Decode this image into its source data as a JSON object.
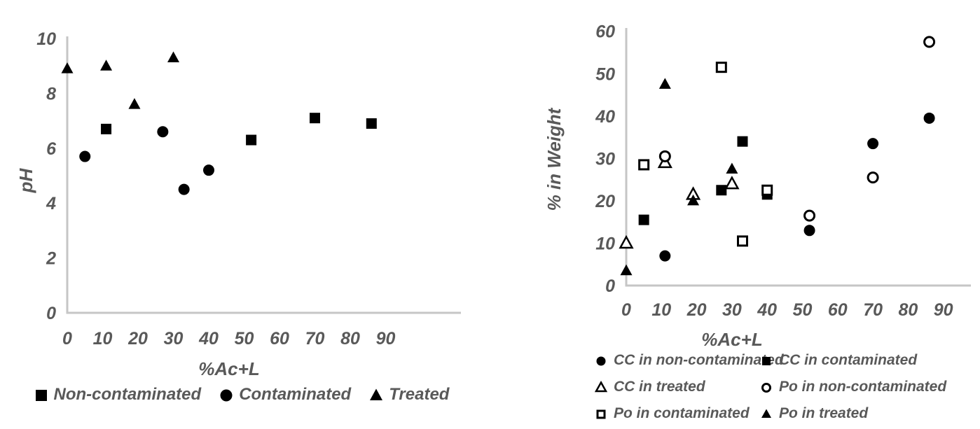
{
  "figure": {
    "background": "#ffffff",
    "text_color": "#595959",
    "axis_line_color": "#c6c6c6",
    "marker_color": "#000000"
  },
  "chart_data": [
    {
      "type": "scatter",
      "title": "",
      "xlabel": "%Ac+L",
      "ylabel": "pH",
      "xlim": [
        0,
        90
      ],
      "ylim": [
        0,
        10
      ],
      "xticks": [
        0,
        10,
        20,
        30,
        40,
        50,
        60,
        70,
        80,
        90
      ],
      "yticks": [
        0,
        2,
        4,
        6,
        8,
        10
      ],
      "grid": false,
      "legend_position": "bottom-center-single-row",
      "series": [
        {
          "name": "Non-contaminated",
          "marker": "filled-square",
          "points": [
            [
              11,
              6.7
            ],
            [
              52,
              6.3
            ],
            [
              70,
              7.1
            ],
            [
              86,
              6.9
            ]
          ]
        },
        {
          "name": "Contaminated",
          "marker": "filled-circle",
          "points": [
            [
              5,
              5.7
            ],
            [
              27,
              6.6
            ],
            [
              33,
              4.5
            ],
            [
              40,
              5.2
            ]
          ]
        },
        {
          "name": "Treated",
          "marker": "filled-triangle",
          "points": [
            [
              0,
              8.9
            ],
            [
              11,
              9.0
            ],
            [
              19,
              7.6
            ],
            [
              30,
              9.3
            ]
          ]
        }
      ]
    },
    {
      "type": "scatter",
      "title": "",
      "xlabel": "%Ac+L",
      "ylabel": "% in Weight",
      "xlim": [
        0,
        90
      ],
      "ylim": [
        0,
        60
      ],
      "xticks": [
        0,
        10,
        20,
        30,
        40,
        50,
        60,
        70,
        80,
        90
      ],
      "yticks": [
        0,
        10,
        20,
        30,
        40,
        50,
        60
      ],
      "grid": false,
      "legend_position": "bottom-two-columns",
      "series": [
        {
          "name": "CC in non-contaminated",
          "marker": "filled-circle",
          "points": [
            [
              11,
              7
            ],
            [
              52,
              13
            ],
            [
              70,
              33.5
            ],
            [
              86,
              39.5
            ]
          ]
        },
        {
          "name": "CC in contaminated",
          "marker": "filled-square",
          "points": [
            [
              5,
              15.5
            ],
            [
              27,
              22.5
            ],
            [
              33,
              34
            ],
            [
              40,
              21.5
            ]
          ]
        },
        {
          "name": "CC in treated",
          "marker": "open-triangle",
          "points": [
            [
              0,
              10
            ],
            [
              11,
              29
            ],
            [
              19,
              21.5
            ],
            [
              30,
              24
            ]
          ]
        },
        {
          "name": "Po in non-contaminated",
          "marker": "open-circle",
          "points": [
            [
              11,
              30.5
            ],
            [
              52,
              16.5
            ],
            [
              70,
              25.5
            ],
            [
              86,
              57.5
            ]
          ]
        },
        {
          "name": "Po in contaminated",
          "marker": "open-square",
          "points": [
            [
              5,
              28.5
            ],
            [
              27,
              51.5
            ],
            [
              33,
              10.5
            ],
            [
              40,
              22.5
            ]
          ]
        },
        {
          "name": "Po in treated",
          "marker": "filled-triangle",
          "points": [
            [
              0,
              3.5
            ],
            [
              11,
              47.5
            ],
            [
              19,
              20
            ],
            [
              30,
              27.5
            ]
          ]
        }
      ]
    }
  ]
}
